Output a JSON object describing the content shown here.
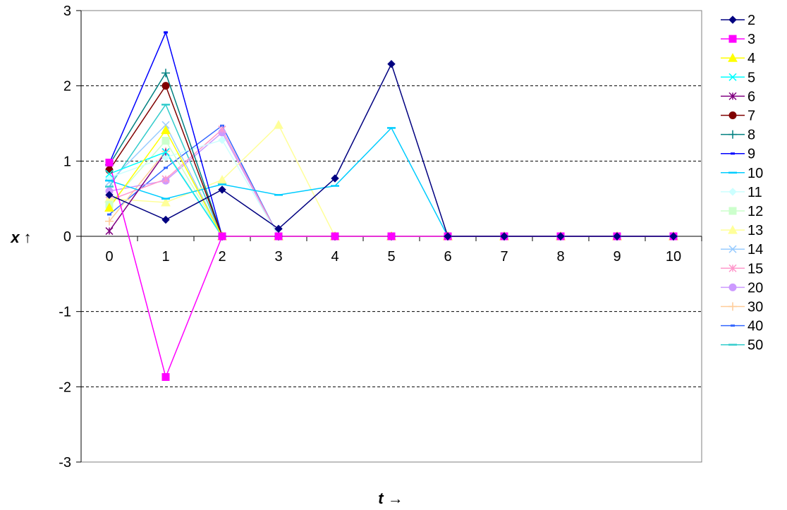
{
  "chart_data": {
    "type": "line",
    "title": "",
    "xlabel": "t →",
    "ylabel": "x ↑",
    "x": [
      0,
      1,
      2,
      3,
      4,
      5,
      6,
      7,
      8,
      9,
      10
    ],
    "ylim": [
      -3,
      3
    ],
    "yticks": [
      "3",
      "2",
      "1",
      "0",
      "-1",
      "-2",
      "-3"
    ],
    "ytick_values": [
      3,
      2,
      1,
      0,
      -1,
      -2,
      -3
    ],
    "xticks": [
      "0",
      "1",
      "2",
      "3",
      "4",
      "5",
      "6",
      "7",
      "8",
      "9",
      "10"
    ],
    "grid": "horizontal dashed at 2, 1, -1, -2",
    "legend_position": "right",
    "series": [
      {
        "name": "2",
        "color": "#000080",
        "marker": "diamond",
        "values": [
          0.55,
          0.22,
          0.62,
          0.1,
          0.77,
          2.29,
          0,
          0,
          0,
          0,
          0
        ]
      },
      {
        "name": "3",
        "color": "#FF00FF",
        "marker": "square",
        "values": [
          0.98,
          -1.87,
          0,
          0,
          0,
          0,
          0,
          0,
          0,
          0,
          0
        ]
      },
      {
        "name": "4",
        "color": "#FFFF00",
        "marker": "triangle",
        "values": [
          0.38,
          1.41,
          0,
          0,
          0,
          0,
          0,
          0,
          0,
          0,
          0
        ]
      },
      {
        "name": "5",
        "color": "#00FFFF",
        "marker": "x",
        "values": [
          0.83,
          1.12,
          0,
          0,
          0,
          0,
          0,
          0,
          0,
          0,
          0
        ]
      },
      {
        "name": "6",
        "color": "#800080",
        "marker": "star",
        "values": [
          0.07,
          1.12,
          0,
          0,
          0,
          0,
          0,
          0,
          0,
          0,
          0
        ]
      },
      {
        "name": "7",
        "color": "#800000",
        "marker": "circle",
        "values": [
          0.88,
          2.0,
          0,
          0,
          0,
          0,
          0,
          0,
          0,
          0,
          0
        ]
      },
      {
        "name": "8",
        "color": "#008080",
        "marker": "plus",
        "values": [
          0.95,
          2.17,
          0,
          0,
          0,
          0,
          0,
          0,
          0,
          0,
          0
        ]
      },
      {
        "name": "9",
        "color": "#0000FF",
        "marker": "dash",
        "values": [
          0.97,
          2.71,
          0,
          0,
          0,
          0,
          0,
          0,
          0,
          0,
          0
        ]
      },
      {
        "name": "10",
        "color": "#00CCFF",
        "marker": "longdash",
        "values": [
          0.74,
          0.5,
          0.69,
          0.55,
          0.67,
          1.44,
          0,
          0,
          0,
          0,
          0
        ]
      },
      {
        "name": "11",
        "color": "#CCFFFF",
        "marker": "diamond",
        "values": [
          0.78,
          1.05,
          1.28,
          0,
          0,
          0,
          0,
          0,
          0,
          0,
          0
        ]
      },
      {
        "name": "12",
        "color": "#CCFFCC",
        "marker": "square",
        "values": [
          0.42,
          1.27,
          0,
          0,
          0,
          0,
          0,
          0,
          0,
          0,
          0
        ]
      },
      {
        "name": "13",
        "color": "#FFFF99",
        "marker": "triangle",
        "values": [
          0.5,
          0.45,
          0.75,
          1.48,
          0,
          0,
          0,
          0,
          0,
          0,
          0
        ]
      },
      {
        "name": "14",
        "color": "#99CCFF",
        "marker": "x",
        "values": [
          0.72,
          1.48,
          0,
          0,
          0,
          0,
          0,
          0,
          0,
          0,
          0
        ]
      },
      {
        "name": "15",
        "color": "#FF99CC",
        "marker": "star",
        "values": [
          0.48,
          0.76,
          1.42,
          0,
          0,
          0,
          0,
          0,
          0,
          0,
          0
        ]
      },
      {
        "name": "20",
        "color": "#CC99FF",
        "marker": "circle",
        "values": [
          0.6,
          0.74,
          1.38,
          0,
          0,
          0,
          0,
          0,
          0,
          0,
          0
        ]
      },
      {
        "name": "30",
        "color": "#FFCC99",
        "marker": "plus",
        "values": [
          0.2,
          1.13,
          0,
          0,
          0,
          0,
          0,
          0,
          0,
          0,
          0
        ]
      },
      {
        "name": "40",
        "color": "#3366FF",
        "marker": "dash",
        "values": [
          0.29,
          0.91,
          1.47,
          0,
          0,
          0,
          0,
          0,
          0,
          0,
          0
        ]
      },
      {
        "name": "50",
        "color": "#33CCCC",
        "marker": "longdash",
        "values": [
          0.66,
          1.75,
          0,
          0,
          0,
          0,
          0,
          0,
          0,
          0,
          0
        ]
      }
    ]
  }
}
